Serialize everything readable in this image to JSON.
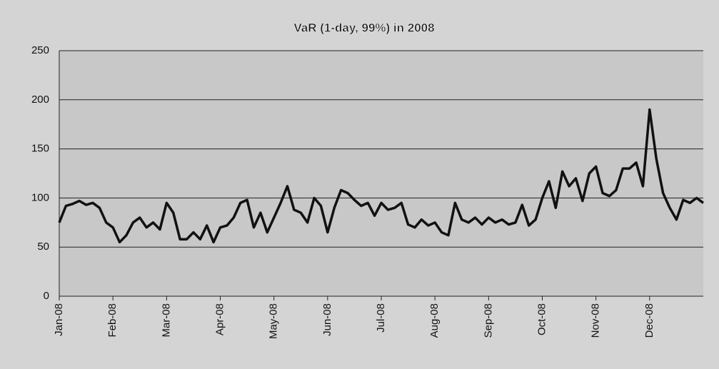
{
  "chart_data": {
    "type": "line",
    "title": "VaR  (1-day, 99%)  in 2008",
    "categories": [
      "Jan-08",
      null,
      null,
      null,
      null,
      null,
      null,
      null,
      "Feb-08",
      null,
      null,
      null,
      null,
      null,
      null,
      null,
      "Mar-08",
      null,
      null,
      null,
      null,
      null,
      null,
      null,
      "Apr-08",
      null,
      null,
      null,
      null,
      null,
      null,
      null,
      "May-08",
      null,
      null,
      null,
      null,
      null,
      null,
      null,
      "Jun-08",
      null,
      null,
      null,
      null,
      null,
      null,
      null,
      "Jul-08",
      null,
      null,
      null,
      null,
      null,
      null,
      null,
      "Aug-08",
      null,
      null,
      null,
      null,
      null,
      null,
      null,
      "Sep-08",
      null,
      null,
      null,
      null,
      null,
      null,
      null,
      "Oct-08",
      null,
      null,
      null,
      null,
      null,
      null,
      null,
      "Nov-08",
      null,
      null,
      null,
      null,
      null,
      null,
      null,
      "Dec-08",
      null,
      null,
      null,
      null,
      null,
      null,
      null,
      null
    ],
    "series": [
      {
        "name": "VaR",
        "color": "#111111",
        "values": [
          75,
          92,
          94,
          97,
          93,
          95,
          90,
          75,
          70,
          55,
          62,
          75,
          80,
          70,
          75,
          68,
          95,
          85,
          58,
          58,
          65,
          58,
          72,
          55,
          70,
          72,
          80,
          95,
          98,
          70,
          85,
          65,
          80,
          95,
          112,
          88,
          85,
          75,
          100,
          92,
          65,
          90,
          108,
          105,
          98,
          92,
          95,
          82,
          95,
          88,
          90,
          95,
          73,
          70,
          78,
          72,
          75,
          65,
          62,
          95,
          78,
          75,
          80,
          73,
          80,
          75,
          78,
          73,
          75,
          93,
          72,
          78,
          100,
          117,
          90,
          127,
          112,
          120,
          97,
          125,
          132,
          105,
          102,
          108,
          130,
          130,
          136,
          112,
          190,
          140,
          105,
          90,
          78,
          98,
          95,
          100,
          95
        ]
      }
    ],
    "ylim": [
      0,
      250
    ],
    "yticks": [
      0,
      50,
      100,
      150,
      200,
      250
    ],
    "grid": true
  }
}
